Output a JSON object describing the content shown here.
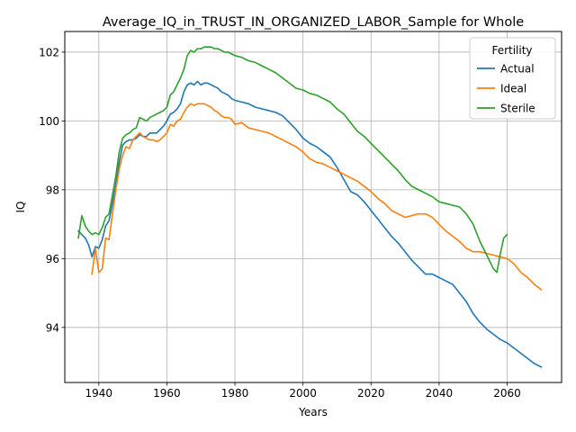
{
  "chart_data": {
    "type": "line",
    "title": "Average_IQ_in_TRUST_IN_ORGANIZED_LABOR_Sample for Whole",
    "xlabel": "Years",
    "ylabel": "IQ",
    "xlim": [
      1930,
      2076
    ],
    "ylim": [
      92.4,
      102.6
    ],
    "xticks": [
      1940,
      1960,
      1980,
      2000,
      2020,
      2040,
      2060
    ],
    "yticks": [
      94,
      96,
      98,
      100,
      102
    ],
    "grid": true,
    "legend": {
      "title": "Fertility",
      "placement": "top-right"
    },
    "series": [
      {
        "name": "Actual",
        "color": "#1f77b4",
        "x": [
          1934,
          1936,
          1937,
          1938,
          1939,
          1940,
          1941,
          1942,
          1943,
          1944,
          1945,
          1946,
          1947,
          1948,
          1949,
          1950,
          1951,
          1952,
          1953,
          1954,
          1955,
          1956,
          1957,
          1958,
          1959,
          1960,
          1961,
          1962,
          1963,
          1964,
          1965,
          1966,
          1967,
          1968,
          1969,
          1970,
          1971,
          1972,
          1973,
          1974,
          1975,
          1976,
          1977,
          1978,
          1979,
          1980,
          1982,
          1984,
          1986,
          1988,
          1990,
          1992,
          1994,
          1996,
          1998,
          2000,
          2002,
          2004,
          2006,
          2008,
          2010,
          2012,
          2014,
          2016,
          2018,
          2020,
          2022,
          2024,
          2026,
          2028,
          2030,
          2032,
          2034,
          2036,
          2038,
          2040,
          2042,
          2044,
          2046,
          2048,
          2050,
          2052,
          2054,
          2056,
          2058,
          2060,
          2062,
          2064,
          2066,
          2068,
          2070
        ],
        "values": [
          96.8,
          96.6,
          96.4,
          96.05,
          96.35,
          96.3,
          96.55,
          96.95,
          97.1,
          97.6,
          98.15,
          98.8,
          99.3,
          99.4,
          99.45,
          99.45,
          99.5,
          99.6,
          99.55,
          99.55,
          99.65,
          99.65,
          99.65,
          99.75,
          99.85,
          100.0,
          100.2,
          100.25,
          100.35,
          100.5,
          100.85,
          101.05,
          101.1,
          101.05,
          101.15,
          101.05,
          101.1,
          101.1,
          101.05,
          101.0,
          100.95,
          100.85,
          100.8,
          100.75,
          100.65,
          100.6,
          100.55,
          100.5,
          100.4,
          100.35,
          100.3,
          100.25,
          100.15,
          99.95,
          99.75,
          99.5,
          99.35,
          99.25,
          99.1,
          98.95,
          98.65,
          98.3,
          97.95,
          97.85,
          97.65,
          97.4,
          97.15,
          96.9,
          96.65,
          96.45,
          96.2,
          95.95,
          95.75,
          95.55,
          95.55,
          95.45,
          95.35,
          95.25,
          95.0,
          94.75,
          94.4,
          94.15,
          93.95,
          93.8,
          93.65,
          93.55,
          93.4,
          93.25,
          93.1,
          92.95,
          92.85
        ]
      },
      {
        "name": "Ideal",
        "color": "#ff7f0e",
        "x": [
          1938,
          1939,
          1940,
          1941,
          1942,
          1943,
          1944,
          1945,
          1946,
          1947,
          1948,
          1949,
          1950,
          1951,
          1952,
          1953,
          1954,
          1955,
          1956,
          1957,
          1958,
          1959,
          1960,
          1961,
          1962,
          1963,
          1964,
          1965,
          1966,
          1967,
          1968,
          1969,
          1970,
          1971,
          1972,
          1973,
          1974,
          1975,
          1976,
          1977,
          1978,
          1979,
          1980,
          1982,
          1984,
          1986,
          1988,
          1990,
          1992,
          1994,
          1996,
          1998,
          2000,
          2002,
          2004,
          2006,
          2008,
          2010,
          2012,
          2014,
          2016,
          2018,
          2020,
          2022,
          2024,
          2026,
          2028,
          2030,
          2032,
          2034,
          2036,
          2038,
          2040,
          2042,
          2044,
          2046,
          2048,
          2050,
          2052,
          2054,
          2056,
          2058,
          2060,
          2062,
          2064,
          2066,
          2068,
          2070
        ],
        "values": [
          95.55,
          96.3,
          95.6,
          95.7,
          96.6,
          96.55,
          97.3,
          98.0,
          98.6,
          99.0,
          99.25,
          99.2,
          99.45,
          99.55,
          99.65,
          99.55,
          99.5,
          99.45,
          99.45,
          99.4,
          99.45,
          99.55,
          99.65,
          99.9,
          99.85,
          100.0,
          100.05,
          100.25,
          100.4,
          100.5,
          100.45,
          100.5,
          100.5,
          100.5,
          100.45,
          100.4,
          100.3,
          100.25,
          100.15,
          100.1,
          100.1,
          100.05,
          99.9,
          99.95,
          99.8,
          99.75,
          99.7,
          99.65,
          99.55,
          99.45,
          99.35,
          99.25,
          99.1,
          98.9,
          98.8,
          98.75,
          98.65,
          98.55,
          98.45,
          98.35,
          98.25,
          98.1,
          97.95,
          97.75,
          97.6,
          97.4,
          97.3,
          97.2,
          97.25,
          97.3,
          97.3,
          97.2,
          97.0,
          96.8,
          96.65,
          96.5,
          96.3,
          96.2,
          96.2,
          96.15,
          96.1,
          96.05,
          96.0,
          95.85,
          95.6,
          95.45,
          95.25,
          95.1
        ]
      },
      {
        "name": "Sterile",
        "color": "#2ca02c",
        "x": [
          1934,
          1935,
          1936,
          1937,
          1938,
          1939,
          1940,
          1941,
          1942,
          1943,
          1944,
          1945,
          1946,
          1947,
          1948,
          1949,
          1950,
          1951,
          1952,
          1953,
          1954,
          1955,
          1956,
          1957,
          1958,
          1959,
          1960,
          1961,
          1962,
          1963,
          1964,
          1965,
          1966,
          1967,
          1968,
          1969,
          1970,
          1971,
          1972,
          1973,
          1974,
          1975,
          1976,
          1977,
          1978,
          1979,
          1980,
          1982,
          1984,
          1986,
          1988,
          1990,
          1992,
          1994,
          1996,
          1998,
          2000,
          2002,
          2004,
          2006,
          2008,
          2010,
          2012,
          2014,
          2016,
          2018,
          2020,
          2022,
          2024,
          2026,
          2028,
          2030,
          2032,
          2034,
          2036,
          2038,
          2040,
          2042,
          2044,
          2046,
          2048,
          2050,
          2052,
          2054,
          2056,
          2057,
          2058,
          2059,
          2060
        ],
        "values": [
          96.6,
          97.25,
          96.95,
          96.8,
          96.7,
          96.75,
          96.7,
          96.9,
          97.2,
          97.3,
          97.85,
          98.4,
          99.1,
          99.5,
          99.6,
          99.65,
          99.75,
          99.8,
          100.1,
          100.05,
          100.0,
          100.1,
          100.15,
          100.2,
          100.25,
          100.3,
          100.4,
          100.75,
          100.85,
          101.05,
          101.25,
          101.5,
          101.9,
          102.05,
          102.0,
          102.1,
          102.1,
          102.15,
          102.15,
          102.15,
          102.1,
          102.1,
          102.05,
          102.0,
          102.0,
          101.95,
          101.9,
          101.85,
          101.75,
          101.7,
          101.6,
          101.5,
          101.4,
          101.25,
          101.1,
          100.95,
          100.9,
          100.8,
          100.75,
          100.65,
          100.55,
          100.35,
          100.2,
          99.95,
          99.7,
          99.55,
          99.35,
          99.15,
          98.95,
          98.75,
          98.55,
          98.3,
          98.1,
          98.0,
          97.9,
          97.8,
          97.65,
          97.6,
          97.55,
          97.5,
          97.3,
          97.0,
          96.5,
          96.1,
          95.7,
          95.6,
          96.15,
          96.6,
          96.7
        ]
      }
    ]
  }
}
